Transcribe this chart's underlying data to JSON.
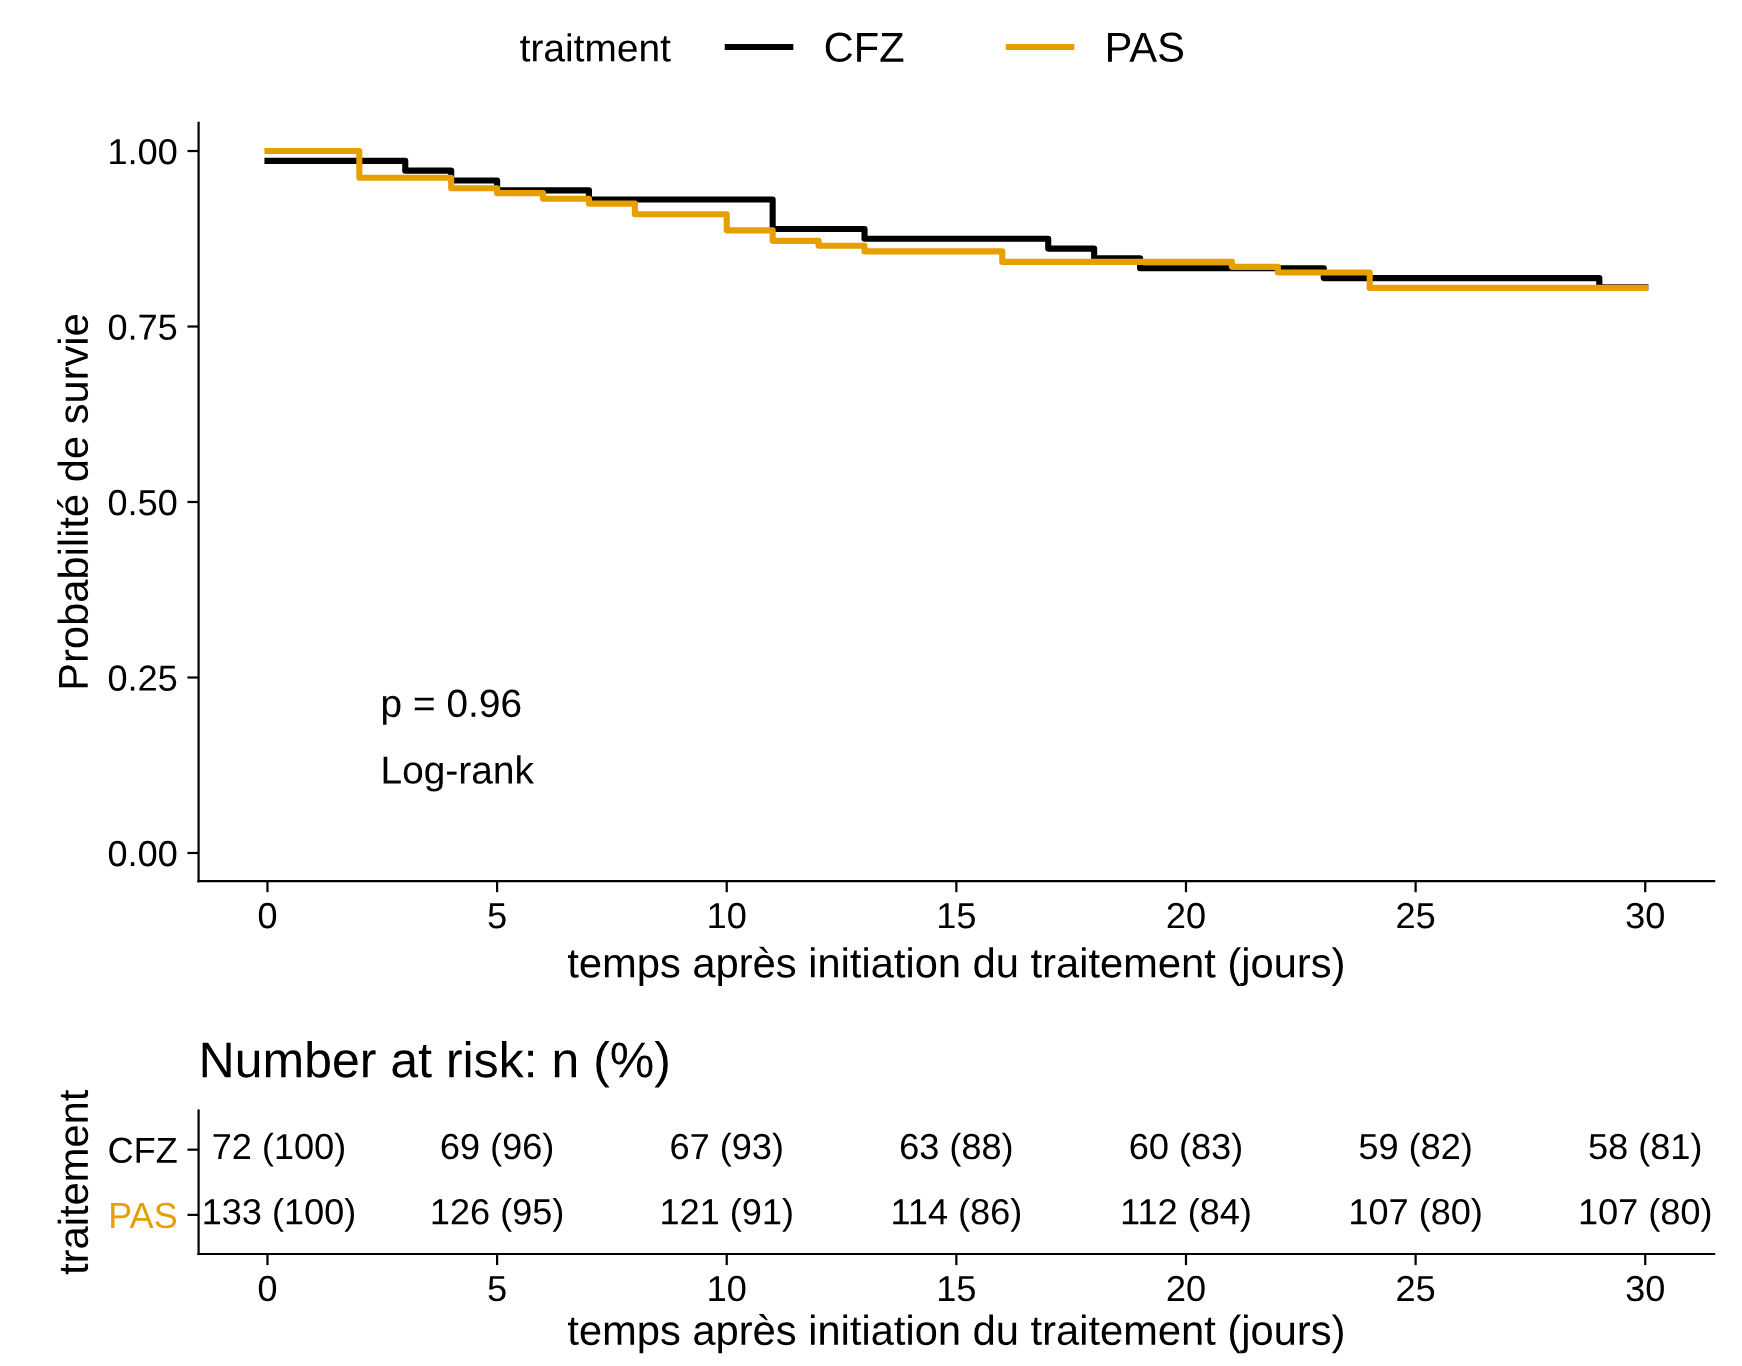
{
  "chart_data": [
    {
      "type": "step",
      "xlabel": "temps après initiation du traitement (jours)",
      "ylabel": "Probabilité de survie",
      "legend_title": "traitment",
      "legend": "top",
      "series": [
        {
          "name": "CFZ",
          "color": "#000000",
          "x": [
            0,
            3,
            4,
            5,
            7,
            11,
            13,
            17,
            18,
            19,
            23,
            29,
            30
          ],
          "values": [
            0.986,
            0.972,
            0.958,
            0.944,
            0.931,
            0.889,
            0.875,
            0.861,
            0.847,
            0.833,
            0.819,
            0.806,
            0.806
          ]
        },
        {
          "name": "PAS",
          "color": "#E69F00",
          "x": [
            0,
            2,
            4,
            5,
            6,
            7,
            8,
            10,
            11,
            12,
            13,
            16,
            21,
            22,
            24,
            30
          ],
          "values": [
            1.0,
            0.962,
            0.947,
            0.94,
            0.932,
            0.925,
            0.91,
            0.887,
            0.872,
            0.865,
            0.857,
            0.842,
            0.835,
            0.827,
            0.805,
            0.805
          ]
        }
      ],
      "xlim": [
        -1.5,
        31.5
      ],
      "xticks": [
        0,
        5,
        10,
        15,
        20,
        25,
        30
      ],
      "ylim": [
        -0.04,
        1.04
      ],
      "yticks": [
        {
          "value": 0,
          "label": "0.00"
        },
        {
          "value": 0.25,
          "label": "0.25"
        },
        {
          "value": 0.5,
          "label": "0.50"
        },
        {
          "value": 0.75,
          "label": "0.75"
        },
        {
          "value": 1,
          "label": "1.00"
        }
      ],
      "grid": false,
      "annotations": [
        "p = 0.96",
        "Log-rank"
      ]
    },
    {
      "type": "heatmap",
      "title": "Number at risk: n (%)",
      "xlabel": "temps après initiation du traitement (jours)",
      "ylabel": "traitement",
      "categories": [
        "0",
        "5",
        "10",
        "15",
        "20",
        "25",
        "30"
      ],
      "y_categories": [
        "CFZ",
        "PAS"
      ],
      "colors": [
        "#000000",
        "#E69F00"
      ],
      "cells": [
        [
          "72 (100)",
          "69 (96)",
          "67 (93)",
          "63 (88)",
          "60 (83)",
          "59 (82)",
          "58 (81)"
        ],
        [
          "133 (100)",
          "126 (95)",
          "121 (91)",
          "114 (86)",
          "112 (84)",
          "107 (80)",
          "107 (80)"
        ]
      ]
    }
  ]
}
